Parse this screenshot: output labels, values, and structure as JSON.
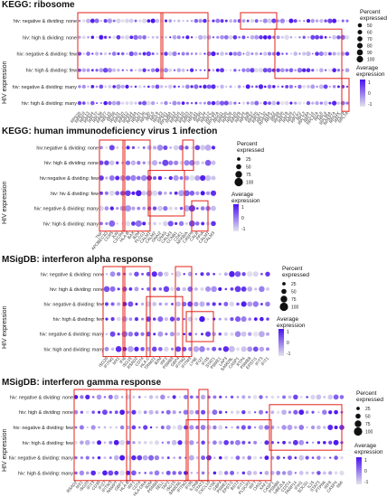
{
  "chart_data": [
    {
      "type": "dotplot",
      "title": "KEGG: ribosome",
      "ylabel": "HIV expression",
      "rows": [
        "hiv: negative & dividing: none",
        "hiv: high & dividing: none",
        "hiv: negative & dividing: few",
        "hiv: high & dividing: few",
        "hiv: negative & dividing: many",
        "hiv: high & dividing: many"
      ],
      "genes": [
        "RPS20",
        "RPS18",
        "RPL13",
        "RPS24",
        "RPL37",
        "RPL38",
        "RPS27",
        "RPL15",
        "RPS6",
        "RPL31",
        "RPS10",
        "RPS12",
        "RPS14",
        "RPS3A",
        "RPL21",
        "RPL35",
        "RPL30",
        "RPL5",
        "RPL9",
        "RPL23",
        "RPS21",
        "RPL36A",
        "RPS13",
        "RPS16",
        "RPL18",
        "RPS23",
        "RPS15",
        "RPL41",
        "RPS8",
        "RPL34",
        "RPL12",
        "RPL26",
        "RPL27A",
        "RPS11",
        "RPS26",
        "RPL36",
        "RPL10",
        "RPS29",
        "RPL24",
        "RPL39",
        "RPS7",
        "RPS25",
        "RPLP1",
        "RPL32",
        "RPS15A",
        "RPL22",
        "RPS9",
        "RPS28",
        "RPL19",
        "RPL28",
        "RPL27",
        "RPLP2",
        "RPL3",
        "RPL18A",
        "RPL14",
        "RPL37A",
        "RPL6",
        "RPL8",
        "RPL35A",
        "RPS27A",
        "RPS4X",
        "RPL29",
        "RPL7A"
      ],
      "legend_size": {
        "title": "Percent expressed",
        "values": [
          50,
          60,
          70,
          80,
          90,
          100
        ]
      },
      "legend_color": {
        "title": "Average expression",
        "ticks": [
          "1",
          "0",
          "-1"
        ]
      },
      "colors": {
        "high": "#4a12f0",
        "low": "#e4e4ec"
      }
    },
    {
      "type": "dotplot",
      "title": "KEGG: human immunodeficiency virus 1 infection",
      "ylabel": "HIV expression",
      "rows": [
        "hiv:negative & dividing: none",
        "hiv: high & dividing: none",
        "hiv:negative & dividing: few",
        "hiv: hiv & dividing: few",
        "hiv: negative & dividing: many",
        "hiv: high & dividing: many"
      ],
      "genes": [
        "TNF",
        "APOBEC3G",
        "CCR5",
        "JUN",
        "CXCR4",
        "HLA-B",
        "BAX",
        "B2M",
        "PLCG1",
        "CALM1",
        "CALM2",
        "GNAI2",
        "GNAS",
        "CALM3",
        "CCNB1",
        "CDK1",
        "NFKBIA",
        "CASP8",
        "CALR",
        "PPIA",
        "CALM1",
        "CALM3"
      ],
      "legend_size": {
        "title": "Percent expressed",
        "values": [
          25,
          50,
          75,
          100
        ]
      },
      "legend_color": {
        "title": "Average expression",
        "ticks": [
          "1",
          "0",
          "-1"
        ]
      },
      "colors": {
        "high": "#4a12f0",
        "low": "#e4e4ec"
      }
    },
    {
      "type": "dotplot",
      "title": "MSigDB: interferon alpha response",
      "ylabel": "HIV expression",
      "rows": [
        "hiv: negative & dividing: none",
        "hiv: high & dividing: none",
        "hiv: negative & dividing: few",
        "hiv: high & dividing: few",
        "hiv: negative & dividing: many",
        "hiv: high and dividing: many"
      ],
      "genes": [
        "ISG20",
        "IFITM1",
        "MX1",
        "IFI6",
        "ISG15",
        "RSAD2",
        "CD74",
        "HLA-C",
        "TRIM21",
        "B2M",
        "IRF1",
        "PSMB8",
        "GBP4",
        "IFITM2",
        "IFITM3",
        "LY6E",
        "IFI27",
        "IFI35",
        "STAT1",
        "PSME1",
        "LAP3",
        "SAMD9L",
        "CASP1",
        "RTP4",
        "PSMB9",
        "EPSTI1",
        "IFIT3",
        "IFIT1"
      ],
      "legend_size": {
        "title": "Percent expressed",
        "values": [
          25,
          50,
          75,
          100
        ]
      },
      "legend_color": {
        "title": "Average expression",
        "ticks": [
          "1",
          "0",
          "-1"
        ]
      },
      "colors": {
        "high": "#4a12f0",
        "low": "#e4e4ec"
      }
    },
    {
      "type": "dotplot",
      "title": "MSigDB: interferon gamma response",
      "ylabel": "HIV expression",
      "rows": [
        "hiv: negative & dividing: none",
        "hiv: high & dividing: none",
        "hiv: negative & dividing: few",
        "hiv: high & dividing: few",
        "hiv: negative & dividing: many",
        "hiv: high & dividing: many"
      ],
      "genes": [
        "RSAD2",
        "MX1",
        "ISG20",
        "IFIT3",
        "CD38",
        "IFI27",
        "IFITM3",
        "NAMPT",
        "GBP1",
        "HLA-B",
        "IRF1",
        "CD74",
        "HLA-DRA",
        "B2M",
        "PSMB8",
        "SELL",
        "TAP1",
        "ISG15",
        "SAMD9L",
        "IFITM2",
        "IFI35",
        "IL2RB",
        "STAT1",
        "CXCL10",
        "LY6E",
        "GBP4",
        "PSME2",
        "EPSTI1",
        "BST2",
        "IFIT1",
        "PLSCR1",
        "IRF7",
        "OAS2",
        "XAF1",
        "CASP1",
        "PSMB9",
        "UBE2L6",
        "CD274",
        "PARP14",
        "IFIH1",
        "SOCS1",
        "IL15",
        "STAT3",
        "PTPN6",
        "IRF8",
        "CASP4",
        "NMI"
      ],
      "legend_size": {
        "title": "Percent expressed",
        "values": [
          25,
          50,
          75,
          100
        ]
      },
      "legend_color": {
        "title": "Average expression",
        "ticks": [
          "1",
          "0",
          "-1"
        ]
      },
      "colors": {
        "high": "#4a12f0",
        "low": "#e4e4ec"
      }
    }
  ]
}
